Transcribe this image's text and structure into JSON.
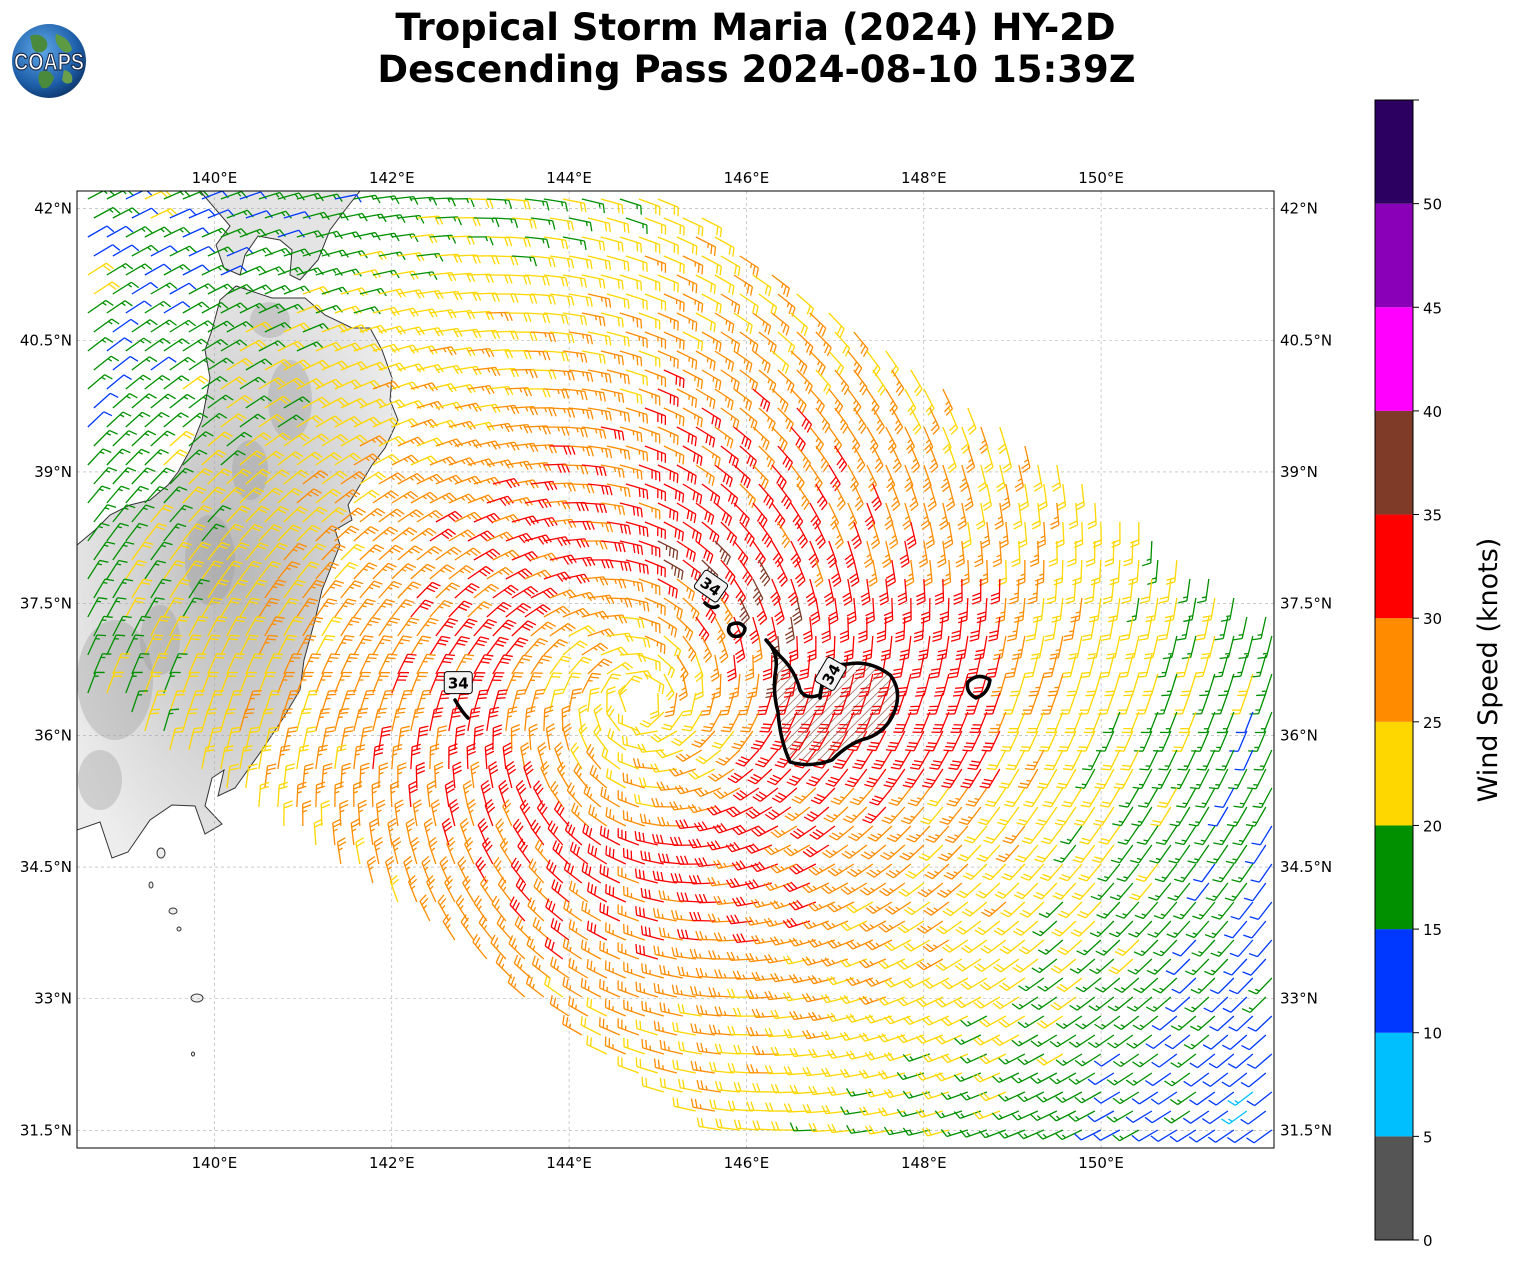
{
  "header": {
    "title_line1": "Tropical Storm Maria (2024) HY-2D",
    "title_line2": "Descending Pass 2024-08-10 15:39Z",
    "logo_text": "COAPS",
    "logo_icon": "globe-icon"
  },
  "map": {
    "lon_range": [
      138.45,
      151.95
    ],
    "lat_range": [
      31.3,
      42.2
    ],
    "lon_ticks": [
      {
        "value": 140,
        "label": "140°E"
      },
      {
        "value": 142,
        "label": "142°E"
      },
      {
        "value": 144,
        "label": "144°E"
      },
      {
        "value": 146,
        "label": "146°E"
      },
      {
        "value": 148,
        "label": "148°E"
      },
      {
        "value": 150,
        "label": "150°E"
      }
    ],
    "lat_ticks": [
      {
        "value": 42,
        "label": "42°N"
      },
      {
        "value": 40.5,
        "label": "40.5°N"
      },
      {
        "value": 39,
        "label": "39°N"
      },
      {
        "value": 37.5,
        "label": "37.5°N"
      },
      {
        "value": 36,
        "label": "36°N"
      },
      {
        "value": 34.5,
        "label": "34.5°N"
      },
      {
        "value": 33,
        "label": "33°N"
      },
      {
        "value": 31.5,
        "label": "31.5°N"
      }
    ],
    "storm_center": {
      "lon": 144.8,
      "lat": 36.4
    },
    "contour_labels": [
      {
        "text": "34",
        "lon": 142.75,
        "lat": 36.6
      },
      {
        "text": "34",
        "lon": 145.6,
        "lat": 37.7
      },
      {
        "text": "34",
        "lon": 146.95,
        "lat": 36.7
      }
    ]
  },
  "colorbar": {
    "title": "Wind Speed (knots)",
    "tick_labels": [
      "0",
      "5",
      "10",
      "15",
      "20",
      "25",
      "30",
      "35",
      "40",
      "45",
      "50"
    ],
    "bins": [
      {
        "min": 0,
        "max": 5,
        "color": "#555555"
      },
      {
        "min": 5,
        "max": 10,
        "color": "#00bfff"
      },
      {
        "min": 10,
        "max": 15,
        "color": "#0038ff"
      },
      {
        "min": 15,
        "max": 20,
        "color": "#009000"
      },
      {
        "min": 20,
        "max": 25,
        "color": "#ffd700"
      },
      {
        "min": 25,
        "max": 30,
        "color": "#ff8c00"
      },
      {
        "min": 30,
        "max": 35,
        "color": "#ff0000"
      },
      {
        "min": 35,
        "max": 40,
        "color": "#803b28"
      },
      {
        "min": 40,
        "max": 45,
        "color": "#ff00ff"
      },
      {
        "min": 45,
        "max": 50,
        "color": "#8a00b8"
      },
      {
        "min": 50,
        "max": 55,
        "color": "#2b0060"
      }
    ]
  }
}
